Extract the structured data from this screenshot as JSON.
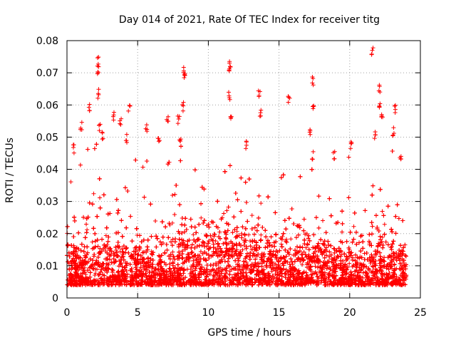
{
  "chart_data": {
    "type": "scatter",
    "title": "Day 014 of 2021, Rate Of TEC Index for receiver titg",
    "xlabel": "GPS time / hours",
    "ylabel": "ROTI / TECUs",
    "xlim": [
      0,
      25
    ],
    "ylim": [
      0,
      0.08
    ],
    "xticks": [
      0,
      5,
      10,
      15,
      20,
      25
    ],
    "xtick_labels": [
      "0",
      "5",
      "10",
      "15",
      "20",
      "25"
    ],
    "yticks": [
      0,
      0.01,
      0.02,
      0.03,
      0.04,
      0.05,
      0.06,
      0.07,
      0.08
    ],
    "ytick_labels": [
      "0",
      "0.01",
      "0.02",
      "0.03",
      "0.04",
      "0.05",
      "0.06",
      "0.07",
      "0.08"
    ],
    "grid": true,
    "marker": "+",
    "colors": {
      "points": "#ff0000",
      "grid": "#a0a0a0",
      "axes": "#000000"
    },
    "series": [
      {
        "name": "ROTI",
        "x_range": [
          0.0,
          24.0
        ],
        "approx_points": 9000,
        "typical_range": [
          0.004,
          0.02
        ],
        "hourly_envelope": [
          {
            "x": 0,
            "median": 0.009,
            "upper": 0.028
          },
          {
            "x": 1,
            "median": 0.009,
            "upper": 0.034
          },
          {
            "x": 2,
            "median": 0.01,
            "upper": 0.04
          },
          {
            "x": 3,
            "median": 0.011,
            "upper": 0.036
          },
          {
            "x": 4,
            "median": 0.011,
            "upper": 0.04
          },
          {
            "x": 5,
            "median": 0.01,
            "upper": 0.034
          },
          {
            "x": 6,
            "median": 0.01,
            "upper": 0.032
          },
          {
            "x": 7,
            "median": 0.011,
            "upper": 0.033
          },
          {
            "x": 8,
            "median": 0.012,
            "upper": 0.036
          },
          {
            "x": 9,
            "median": 0.012,
            "upper": 0.032
          },
          {
            "x": 10,
            "median": 0.013,
            "upper": 0.032
          },
          {
            "x": 11,
            "median": 0.013,
            "upper": 0.036
          },
          {
            "x": 12,
            "median": 0.013,
            "upper": 0.036
          },
          {
            "x": 13,
            "median": 0.013,
            "upper": 0.036
          },
          {
            "x": 14,
            "median": 0.012,
            "upper": 0.04
          },
          {
            "x": 15,
            "median": 0.012,
            "upper": 0.034
          },
          {
            "x": 16,
            "median": 0.011,
            "upper": 0.033
          },
          {
            "x": 17,
            "median": 0.011,
            "upper": 0.032
          },
          {
            "x": 18,
            "median": 0.011,
            "upper": 0.032
          },
          {
            "x": 19,
            "median": 0.01,
            "upper": 0.034
          },
          {
            "x": 20,
            "median": 0.01,
            "upper": 0.032
          },
          {
            "x": 21,
            "median": 0.01,
            "upper": 0.036
          },
          {
            "x": 22,
            "median": 0.01,
            "upper": 0.04
          },
          {
            "x": 23,
            "median": 0.01,
            "upper": 0.034
          },
          {
            "x": 24,
            "median": 0.009,
            "upper": 0.024
          }
        ],
        "notable_points": [
          {
            "x": 0.5,
            "y": 0.048
          },
          {
            "x": 1.0,
            "y": 0.055
          },
          {
            "x": 1.6,
            "y": 0.061
          },
          {
            "x": 2.2,
            "y": 0.075
          },
          {
            "x": 2.2,
            "y": 0.072
          },
          {
            "x": 2.2,
            "y": 0.065
          },
          {
            "x": 2.3,
            "y": 0.054
          },
          {
            "x": 3.3,
            "y": 0.058
          },
          {
            "x": 3.8,
            "y": 0.056
          },
          {
            "x": 4.2,
            "y": 0.051
          },
          {
            "x": 4.4,
            "y": 0.06
          },
          {
            "x": 5.6,
            "y": 0.054
          },
          {
            "x": 6.5,
            "y": 0.05
          },
          {
            "x": 7.1,
            "y": 0.057
          },
          {
            "x": 7.9,
            "y": 0.057
          },
          {
            "x": 8.2,
            "y": 0.061
          },
          {
            "x": 8.3,
            "y": 0.072
          },
          {
            "x": 8.3,
            "y": 0.071
          },
          {
            "x": 11.5,
            "y": 0.074
          },
          {
            "x": 11.5,
            "y": 0.072
          },
          {
            "x": 11.5,
            "y": 0.064
          },
          {
            "x": 11.6,
            "y": 0.057
          },
          {
            "x": 12.7,
            "y": 0.049
          },
          {
            "x": 13.6,
            "y": 0.065
          },
          {
            "x": 13.7,
            "y": 0.059
          },
          {
            "x": 15.7,
            "y": 0.063
          },
          {
            "x": 17.4,
            "y": 0.069
          },
          {
            "x": 17.4,
            "y": 0.06
          },
          {
            "x": 17.2,
            "y": 0.053
          },
          {
            "x": 17.4,
            "y": 0.046
          },
          {
            "x": 18.9,
            "y": 0.046
          },
          {
            "x": 20.1,
            "y": 0.049
          },
          {
            "x": 21.6,
            "y": 0.078
          },
          {
            "x": 22.1,
            "y": 0.067
          },
          {
            "x": 22.1,
            "y": 0.062
          },
          {
            "x": 22.3,
            "y": 0.058
          },
          {
            "x": 21.8,
            "y": 0.052
          },
          {
            "x": 23.2,
            "y": 0.06
          },
          {
            "x": 23.1,
            "y": 0.053
          },
          {
            "x": 23.6,
            "y": 0.045
          },
          {
            "x": 2.5,
            "y": 0.052
          },
          {
            "x": 8.0,
            "y": 0.05
          }
        ]
      }
    ]
  }
}
